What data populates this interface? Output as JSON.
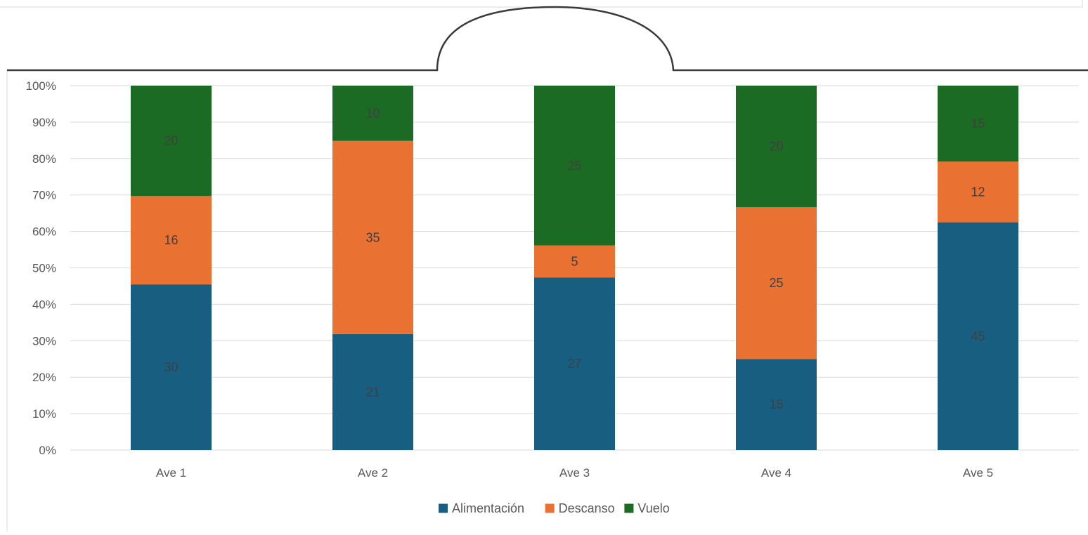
{
  "chart_data": {
    "type": "bar",
    "stacked": "percent",
    "categories": [
      "Ave 1",
      "Ave 2",
      "Ave 3",
      "Ave 4",
      "Ave 5"
    ],
    "series": [
      {
        "name": "Alimentación",
        "values": [
          30,
          21,
          27,
          15,
          45
        ],
        "color": "#175E81"
      },
      {
        "name": "Descanso",
        "values": [
          16,
          35,
          5,
          25,
          12
        ],
        "color": "#E97132"
      },
      {
        "name": "Vuelo",
        "values": [
          20,
          10,
          25,
          20,
          15
        ],
        "color": "#1C6B24"
      }
    ],
    "ylim": [
      0,
      100
    ],
    "y_ticks": [
      "0%",
      "10%",
      "20%",
      "30%",
      "40%",
      "50%",
      "60%",
      "70%",
      "80%",
      "90%",
      "100%"
    ],
    "grid": true,
    "legend_position": "bottom",
    "title": "",
    "xlabel": "",
    "ylabel": ""
  },
  "colors": {
    "gridline": "#D9D9D9",
    "axis_text": "#595959",
    "label_on_light": "#404040",
    "label_on_dark": "#404040",
    "frame": "#D9D9D9",
    "overlay_stroke": "#3A3A3A"
  }
}
